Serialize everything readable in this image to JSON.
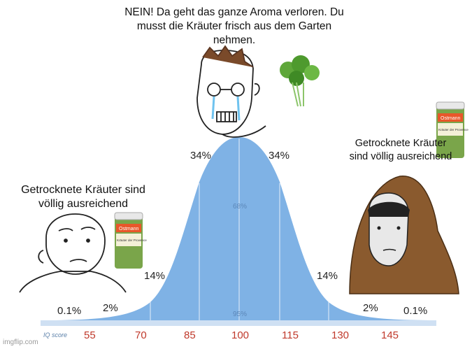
{
  "captions": {
    "top": "NEIN! Da geht das ganze Aroma verloren. Du musst die Kräuter frisch aus dem Garten nehmen.",
    "left": "Getrocknete Kräuter sind völlig ausreichend",
    "right": "Getrocknete Kräuter sind völlig ausreichend"
  },
  "curve": {
    "percent_labels": [
      "34%",
      "34%",
      "14%",
      "14%",
      "2%",
      "2%",
      "0.1%",
      "0.1%"
    ],
    "inner_labels": [
      "68%",
      "95%"
    ],
    "axis_title": "IQ score",
    "ticks": [
      "55",
      "70",
      "85",
      "100",
      "115",
      "130",
      "145"
    ]
  },
  "jar": {
    "brand": "Ostmann",
    "label": "Kräuter der Provence"
  },
  "watermark": "imgflip.com",
  "colors": {
    "curve_fill": "#7fb2e5",
    "curve_dark": "#6aa3db",
    "axis_bar": "#cfe0f3",
    "tick_text": "#c0392b"
  }
}
